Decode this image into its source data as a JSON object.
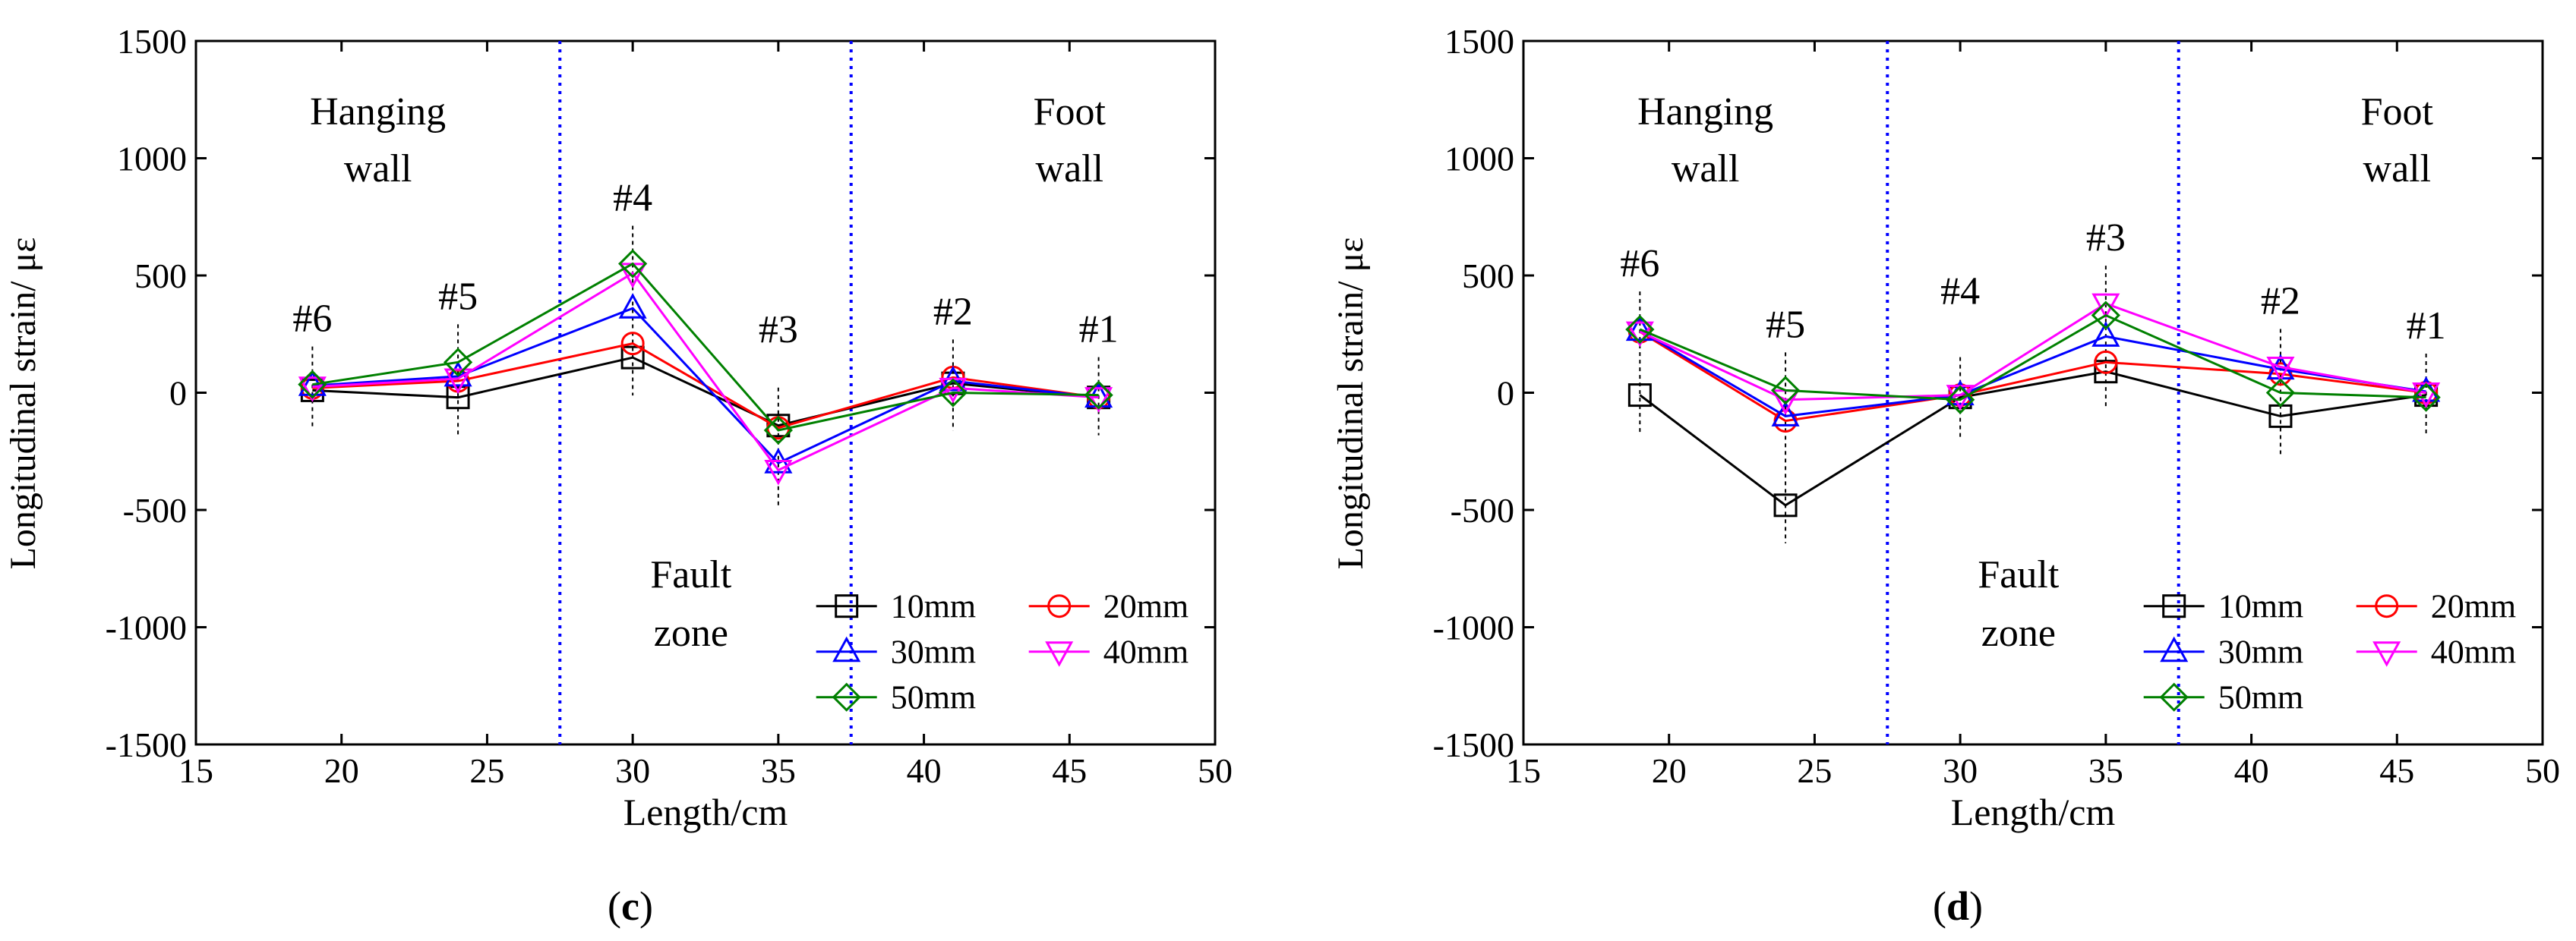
{
  "series_style": [
    {
      "name": "10mm",
      "color": "#000000",
      "marker": "square"
    },
    {
      "name": "20mm",
      "color": "#ff0000",
      "marker": "circle"
    },
    {
      "name": "30mm",
      "color": "#0000ff",
      "marker": "triangle-up"
    },
    {
      "name": "40mm",
      "color": "#ff00ff",
      "marker": "triangle-down"
    },
    {
      "name": "50mm",
      "color": "#008000",
      "marker": "diamond"
    }
  ],
  "chart_data": [
    {
      "panel_label_pre": "(",
      "panel_label": "c",
      "panel_label_post": ")",
      "type": "line",
      "xlabel": "Length/cm",
      "ylabel": "Longitudinal strain/ με",
      "xlim": [
        15,
        50
      ],
      "ylim": [
        -1500,
        1500
      ],
      "xticks": [
        15,
        20,
        25,
        30,
        35,
        40,
        45,
        50
      ],
      "yticks": [
        -1500,
        -1000,
        -500,
        0,
        500,
        1000,
        1500
      ],
      "x": [
        19,
        24,
        30,
        35,
        41,
        46
      ],
      "series": [
        {
          "name": "10mm",
          "values": [
            10,
            -20,
            150,
            -140,
            40,
            -20
          ]
        },
        {
          "name": "20mm",
          "values": [
            20,
            50,
            210,
            -150,
            65,
            -20
          ]
        },
        {
          "name": "30mm",
          "values": [
            30,
            70,
            360,
            -300,
            50,
            -20
          ]
        },
        {
          "name": "40mm",
          "values": [
            25,
            60,
            510,
            -330,
            20,
            -20
          ]
        },
        {
          "name": "50mm",
          "values": [
            35,
            130,
            550,
            -160,
            0,
            -10
          ]
        }
      ],
      "vlines": [
        27.5,
        37.5
      ],
      "region_labels": {
        "hanging": [
          "Hanging",
          "wall"
        ],
        "foot": [
          "Foot",
          "wall"
        ],
        "fault": [
          "Fault",
          "zone"
        ]
      },
      "point_labels": [
        {
          "text": "#6",
          "x": 19
        },
        {
          "text": "#5",
          "x": 24
        },
        {
          "text": "#4",
          "x": 30
        },
        {
          "text": "#3",
          "x": 35
        },
        {
          "text": "#2",
          "x": 41
        },
        {
          "text": "#1",
          "x": 46
        }
      ],
      "legend": "bottom-right"
    },
    {
      "panel_label_pre": "(",
      "panel_label": "d",
      "panel_label_post": ")",
      "type": "line",
      "xlabel": "Length/cm",
      "ylabel": "Longitudinal strain/ με",
      "xlim": [
        15,
        50
      ],
      "ylim": [
        -1500,
        1500
      ],
      "xticks": [
        15,
        20,
        25,
        30,
        35,
        40,
        45,
        50
      ],
      "yticks": [
        -1500,
        -1000,
        -500,
        0,
        500,
        1000,
        1500
      ],
      "x": [
        19,
        24,
        30,
        35,
        41,
        46
      ],
      "series": [
        {
          "name": "10mm",
          "values": [
            -10,
            -480,
            -20,
            90,
            -100,
            -10
          ]
        },
        {
          "name": "20mm",
          "values": [
            260,
            -120,
            -10,
            130,
            80,
            0
          ]
        },
        {
          "name": "30mm",
          "values": [
            265,
            -100,
            -10,
            240,
            100,
            5
          ]
        },
        {
          "name": "40mm",
          "values": [
            260,
            -30,
            -10,
            380,
            110,
            0
          ]
        },
        {
          "name": "50mm",
          "values": [
            270,
            10,
            -30,
            330,
            0,
            -20
          ]
        }
      ],
      "vlines": [
        27.5,
        37.5
      ],
      "region_labels": {
        "hanging": [
          "Hanging",
          "wall"
        ],
        "foot": [
          "Foot",
          "wall"
        ],
        "fault": [
          "Fault",
          "zone"
        ]
      },
      "point_labels": [
        {
          "text": "#6",
          "x": 19
        },
        {
          "text": "#5",
          "x": 24
        },
        {
          "text": "#4",
          "x": 30
        },
        {
          "text": "#3",
          "x": 35
        },
        {
          "text": "#2",
          "x": 41
        },
        {
          "text": "#1",
          "x": 46
        }
      ],
      "legend": "bottom-right"
    }
  ]
}
